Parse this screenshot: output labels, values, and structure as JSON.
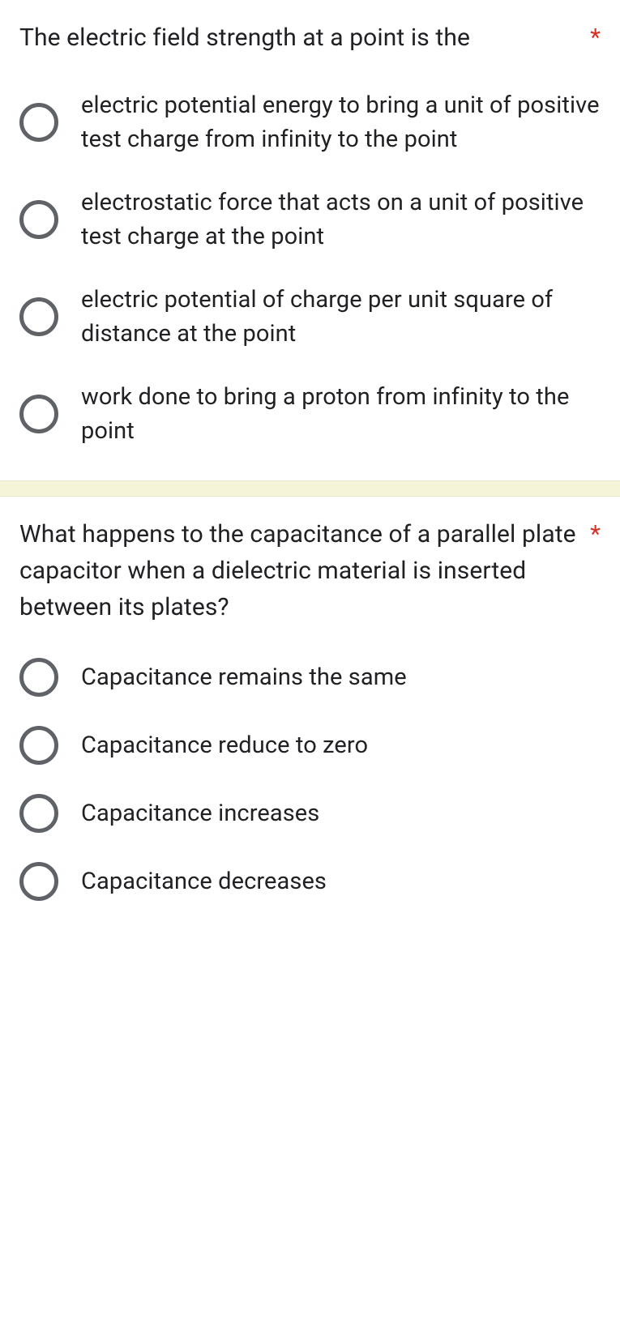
{
  "colors": {
    "text": "#202124",
    "required": "#d93025",
    "radio_border": "#5f6368",
    "divider_bg": "#f4f4d8",
    "background": "#ffffff"
  },
  "typography": {
    "question_fontsize": 30,
    "option_fontsize": 29,
    "font_family": "Roboto, Arial, sans-serif"
  },
  "questions": [
    {
      "text": "The electric field strength at a point is the",
      "required": true,
      "required_mark": "*",
      "options": [
        "electric potential energy to bring a unit of positive test charge from infinity to the point",
        "electrostatic force that acts on a unit of positive test charge at the point",
        "electric potential of charge per unit square of distance at the point",
        "work done to bring a proton from infinity to the point"
      ]
    },
    {
      "text": "What happens to the capacitance of a parallel plate capacitor when a dielectric material is inserted between its plates?",
      "required": true,
      "required_mark": "*",
      "options": [
        "Capacitance remains the same",
        "Capacitance reduce to zero",
        "Capacitance increases",
        "Capacitance decreases"
      ]
    }
  ]
}
